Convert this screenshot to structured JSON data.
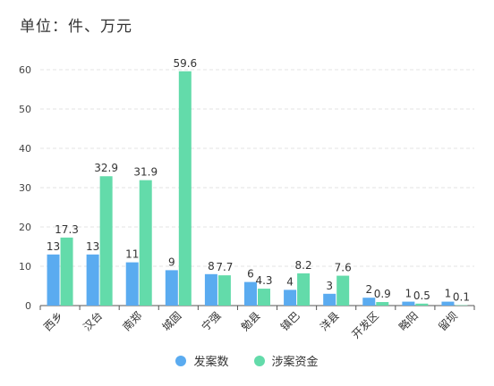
{
  "chart_data": {
    "type": "bar",
    "title": "单位：件、万元",
    "categories": [
      "西乡",
      "汉台",
      "南郑",
      "城固",
      "宁强",
      "勉县",
      "镇巴",
      "洋县",
      "开发区",
      "略阳",
      "留坝"
    ],
    "series": [
      {
        "name": "发案数",
        "color": "#5aabf0",
        "values": [
          13,
          13,
          11,
          9,
          8,
          6,
          4,
          3,
          2,
          1,
          1
        ]
      },
      {
        "name": "涉案资金",
        "color": "#63dbaa",
        "values": [
          17.3,
          32.9,
          31.9,
          59.6,
          7.7,
          4.3,
          8.2,
          7.6,
          0.9,
          0.5,
          0.1
        ]
      }
    ],
    "ylim": [
      0,
      60
    ],
    "yticks": [
      0,
      10,
      20,
      30,
      40,
      50,
      60
    ],
    "grid": true,
    "legend_position": "bottom-center",
    "show_data_labels": true
  }
}
